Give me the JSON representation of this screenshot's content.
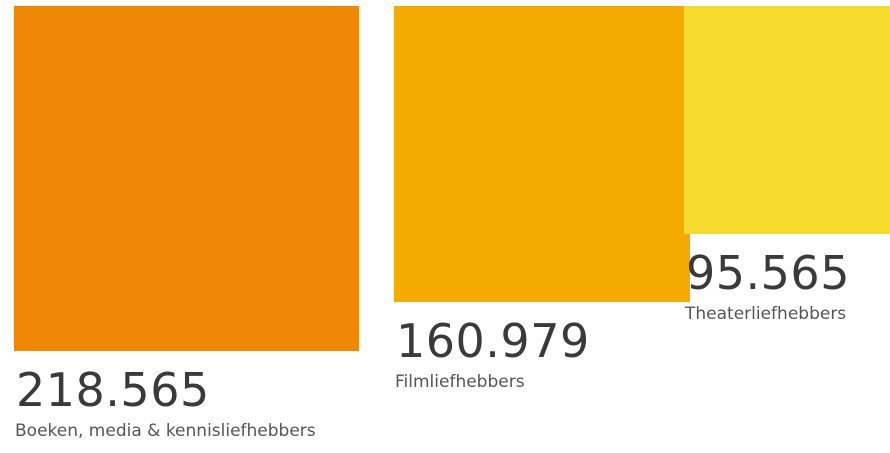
{
  "chart_data": {
    "type": "square-area",
    "items": [
      {
        "value": 218565,
        "value_label": "218.565",
        "label": "Boeken, media & kennisliefhebbers",
        "color": "#F18805"
      },
      {
        "value": 160979,
        "value_label": "160.979",
        "label": "Filmliefhebbers",
        "color": "#F4AA00"
      },
      {
        "value": 95565,
        "value_label": "95.565",
        "label": "Theaterliefhebbers",
        "color": "#F5DB2D"
      }
    ]
  }
}
